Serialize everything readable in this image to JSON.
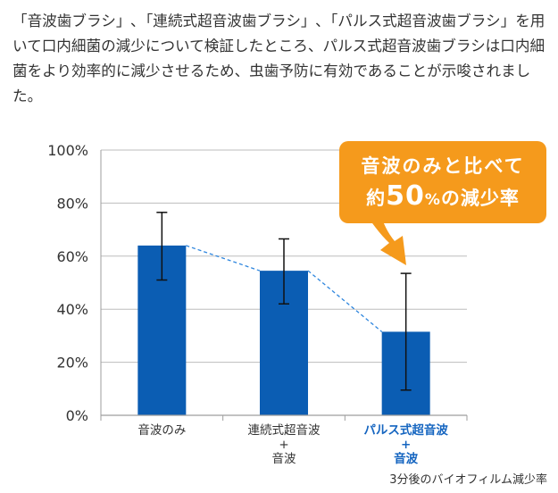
{
  "intro_text": "「音波歯ブラシ」､「連続式超音波歯ブラシ」､「パルス式超音波歯ブラシ」を用いて口内細菌の減少について検証したところ、パルス式超音波歯ブラシは口内細菌をより効率的に減少させるため、虫歯予防に有効であることが示唆されました。",
  "callout": {
    "line1": "音波のみと比べて",
    "line2_prefix": "約",
    "line2_number": "50",
    "line2_percent": "%",
    "line2_suffix": "の減少率"
  },
  "footnote": "3分後のバイオフィルム減少率",
  "colors": {
    "bar": "#0b5db3",
    "highlight_label": "#1565c0",
    "callout": "#f59a1c",
    "dashed_line": "#2e86de"
  },
  "chart_data": {
    "type": "bar",
    "categories": [
      [
        "音波のみ"
      ],
      [
        "連続式超音波",
        "+",
        "音波"
      ],
      [
        "パルス式超音波",
        "+",
        "音波"
      ]
    ],
    "highlight_index": 2,
    "values": [
      64,
      54.5,
      31.5
    ],
    "error_low": [
      51,
      42,
      9.5
    ],
    "error_high": [
      76.5,
      66.5,
      53.5
    ],
    "yticks": [
      "0%",
      "20%",
      "40%",
      "60%",
      "80%",
      "100%"
    ],
    "ylim": [
      0,
      100
    ],
    "grid": true,
    "connector": "dashed"
  }
}
